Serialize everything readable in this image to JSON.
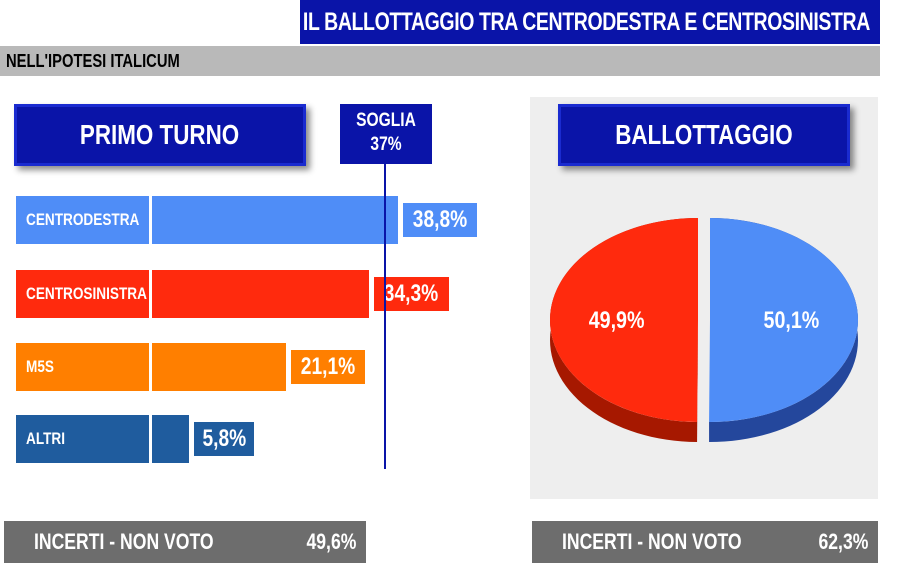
{
  "header": {
    "title": "IL BALLOTTAGGIO TRA CENTRODESTRA E CENTROSINISTRA",
    "subtitle": "NELL'IPOTESI ITALICUM"
  },
  "left": {
    "panel_title": "PRIMO TURNO",
    "threshold": {
      "label": "SOGLIA",
      "value_label": "37%",
      "value": 37
    },
    "footer": {
      "label": "INCERTI - NON VOTO",
      "value": "49,6%"
    }
  },
  "right": {
    "panel_title": "BALLOTTAGGIO",
    "footer": {
      "label": "INCERTI - NON VOTO",
      "value": "62,3%"
    }
  },
  "colors": {
    "centrodestra": "#4f8df7",
    "centrosinistra": "#ff2a0d",
    "m5s": "#ff7f00",
    "altri": "#1f5c9e",
    "navy": "#0a14a8"
  },
  "chart_data": [
    {
      "type": "bar",
      "orientation": "horizontal",
      "title": "PRIMO TURNO",
      "categories": [
        "CENTRODESTRA",
        "CENTROSINISTRA",
        "M5S",
        "ALTRI"
      ],
      "values": [
        38.8,
        34.3,
        21.1,
        5.8
      ],
      "value_labels": [
        "38,8%",
        "34,3%",
        "21,1%",
        "5,8%"
      ],
      "reference_line": {
        "label": "SOGLIA",
        "value_label": "37%",
        "value": 37
      }
    },
    {
      "type": "pie",
      "title": "BALLOTTAGGIO",
      "values": [
        49.9,
        50.1
      ],
      "value_labels": [
        "49,9%",
        "50,1%"
      ]
    }
  ]
}
